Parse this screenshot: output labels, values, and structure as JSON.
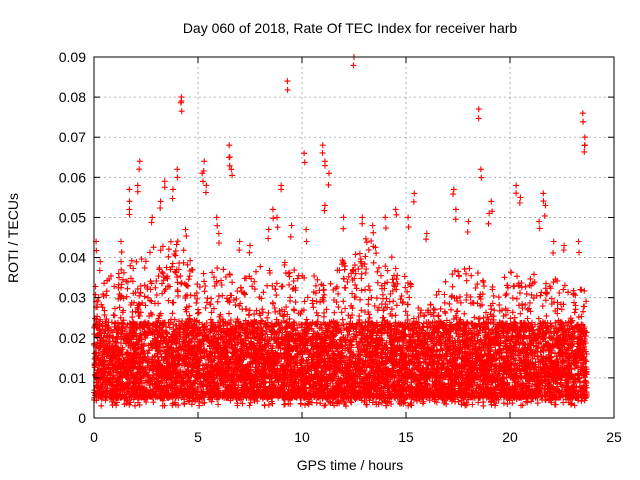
{
  "chart_data": {
    "type": "scatter",
    "title": "Day 060 of 2018, Rate Of TEC Index for receiver harb",
    "xlabel": "GPS time / hours",
    "ylabel": "ROTI / TECUs",
    "xlim": [
      0,
      25
    ],
    "ylim": [
      0,
      0.09
    ],
    "x_ticks": [
      0,
      5,
      10,
      15,
      20,
      25
    ],
    "x_tick_labels": [
      "0",
      "5",
      "10",
      "15",
      "20",
      "25"
    ],
    "y_ticks": [
      0,
      0.01,
      0.02,
      0.03,
      0.04,
      0.05,
      0.06,
      0.07,
      0.08,
      0.09
    ],
    "y_tick_labels": [
      "0",
      "0.01",
      "0.02",
      "0.03",
      "0.04",
      "0.05",
      "0.06",
      "0.07",
      "0.08",
      "0.09"
    ],
    "grid": true,
    "marker": "plus",
    "color": "#ff0000",
    "x_extent": [
      0,
      23.7
    ],
    "typical_range": [
      0.005,
      0.02
    ],
    "envelope": {
      "hours": [
        0,
        1,
        2,
        3,
        4,
        5,
        6,
        7,
        8,
        9,
        10,
        11,
        12,
        13,
        14,
        15,
        16,
        17,
        18,
        19,
        20,
        21,
        22,
        23,
        23.7
      ],
      "upper": [
        0.033,
        0.036,
        0.04,
        0.043,
        0.045,
        0.036,
        0.038,
        0.034,
        0.038,
        0.04,
        0.036,
        0.035,
        0.04,
        0.045,
        0.043,
        0.036,
        0.027,
        0.035,
        0.04,
        0.032,
        0.037,
        0.036,
        0.035,
        0.033,
        0.035
      ]
    },
    "outliers": [
      {
        "x": 0.1,
        "y": 0.044
      },
      {
        "x": 0.3,
        "y": 0.039
      },
      {
        "x": 1.2,
        "y": 0.035
      },
      {
        "x": 1.3,
        "y": 0.039
      },
      {
        "x": 1.3,
        "y": 0.044
      },
      {
        "x": 1.7,
        "y": 0.052
      },
      {
        "x": 1.7,
        "y": 0.057
      },
      {
        "x": 2.1,
        "y": 0.058
      },
      {
        "x": 2.2,
        "y": 0.064
      },
      {
        "x": 2.8,
        "y": 0.05
      },
      {
        "x": 3.2,
        "y": 0.054
      },
      {
        "x": 3.4,
        "y": 0.059
      },
      {
        "x": 3.8,
        "y": 0.057
      },
      {
        "x": 4.0,
        "y": 0.062
      },
      {
        "x": 4.2,
        "y": 0.08
      },
      {
        "x": 4.2,
        "y": 0.079
      },
      {
        "x": 4.4,
        "y": 0.047
      },
      {
        "x": 5.2,
        "y": 0.061
      },
      {
        "x": 5.3,
        "y": 0.064
      },
      {
        "x": 5.4,
        "y": 0.058
      },
      {
        "x": 5.9,
        "y": 0.05
      },
      {
        "x": 6.0,
        "y": 0.046
      },
      {
        "x": 6.5,
        "y": 0.068
      },
      {
        "x": 6.5,
        "y": 0.065
      },
      {
        "x": 6.6,
        "y": 0.062
      },
      {
        "x": 7.0,
        "y": 0.044
      },
      {
        "x": 7.5,
        "y": 0.043
      },
      {
        "x": 8.4,
        "y": 0.047
      },
      {
        "x": 8.6,
        "y": 0.052
      },
      {
        "x": 8.8,
        "y": 0.05
      },
      {
        "x": 9.0,
        "y": 0.058
      },
      {
        "x": 9.3,
        "y": 0.084
      },
      {
        "x": 9.5,
        "y": 0.048
      },
      {
        "x": 10.1,
        "y": 0.066
      },
      {
        "x": 10.2,
        "y": 0.047
      },
      {
        "x": 11.0,
        "y": 0.068
      },
      {
        "x": 11.1,
        "y": 0.064
      },
      {
        "x": 11.3,
        "y": 0.061
      },
      {
        "x": 11.1,
        "y": 0.053
      },
      {
        "x": 12.0,
        "y": 0.05
      },
      {
        "x": 12.5,
        "y": 0.09
      },
      {
        "x": 12.9,
        "y": 0.05
      },
      {
        "x": 13.4,
        "y": 0.048
      },
      {
        "x": 14.0,
        "y": 0.05
      },
      {
        "x": 14.5,
        "y": 0.052
      },
      {
        "x": 15.1,
        "y": 0.05
      },
      {
        "x": 15.4,
        "y": 0.056
      },
      {
        "x": 16.0,
        "y": 0.046
      },
      {
        "x": 17.3,
        "y": 0.057
      },
      {
        "x": 17.4,
        "y": 0.052
      },
      {
        "x": 18.0,
        "y": 0.049
      },
      {
        "x": 18.5,
        "y": 0.077
      },
      {
        "x": 18.6,
        "y": 0.062
      },
      {
        "x": 19.0,
        "y": 0.051
      },
      {
        "x": 19.1,
        "y": 0.054
      },
      {
        "x": 20.3,
        "y": 0.058
      },
      {
        "x": 20.5,
        "y": 0.055
      },
      {
        "x": 21.6,
        "y": 0.056
      },
      {
        "x": 21.7,
        "y": 0.053
      },
      {
        "x": 21.4,
        "y": 0.049
      },
      {
        "x": 22.1,
        "y": 0.044
      },
      {
        "x": 22.6,
        "y": 0.043
      },
      {
        "x": 23.5,
        "y": 0.076
      },
      {
        "x": 23.6,
        "y": 0.07
      },
      {
        "x": 23.6,
        "y": 0.068
      },
      {
        "x": 23.3,
        "y": 0.044
      }
    ]
  }
}
